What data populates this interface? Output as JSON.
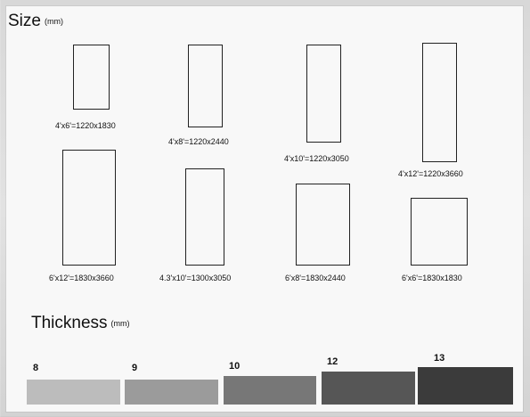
{
  "size_section": {
    "title": "Size",
    "unit": "(mm)",
    "items": [
      {
        "label": "4'x6'=1220x1830",
        "width_mm": 1220,
        "height_mm": 1830
      },
      {
        "label": "4'x8'=1220x2440",
        "width_mm": 1220,
        "height_mm": 2440
      },
      {
        "label": "4'x10'=1220x3050",
        "width_mm": 1220,
        "height_mm": 3050
      },
      {
        "label": "4'x12'=1220x3660",
        "width_mm": 1220,
        "height_mm": 3660
      },
      {
        "label": "6'x12'=1830x3660",
        "width_mm": 1830,
        "height_mm": 3660
      },
      {
        "label": "4.3'x10'=1300x3050",
        "width_mm": 1300,
        "height_mm": 3050
      },
      {
        "label": "6'x8'=1830x2440",
        "width_mm": 1830,
        "height_mm": 2440
      },
      {
        "label": "6'x6'=1830x1830",
        "width_mm": 1830,
        "height_mm": 1830
      }
    ]
  },
  "thickness_section": {
    "title": "Thickness",
    "unit": "(mm)",
    "items": [
      {
        "label": "8",
        "color": "#bcbcbc"
      },
      {
        "label": "9",
        "color": "#9b9b9b"
      },
      {
        "label": "10",
        "color": "#777777"
      },
      {
        "label": "12",
        "color": "#565656"
      },
      {
        "label": "13",
        "color": "#3b3b3b"
      }
    ]
  }
}
